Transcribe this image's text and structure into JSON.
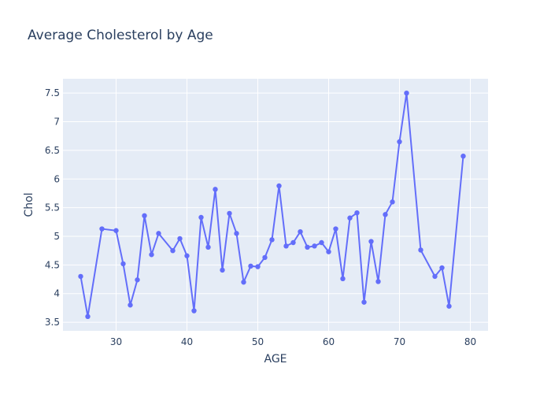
{
  "chart_data": {
    "type": "line",
    "title": "Average Cholesterol by Age",
    "xlabel": "AGE",
    "ylabel": "Chol",
    "xlim": [
      22.5,
      82.5
    ],
    "ylim": [
      3.35,
      7.75
    ],
    "xticks": [
      30,
      40,
      50,
      60,
      70,
      80
    ],
    "yticks": [
      3.5,
      4,
      4.5,
      5,
      5.5,
      6,
      6.5,
      7,
      7.5
    ],
    "ytick_labels": [
      "3.5",
      "4",
      "4.5",
      "5",
      "5.5",
      "6",
      "6.5",
      "7",
      "7.5"
    ],
    "colors": {
      "series": "#636efa",
      "plot_bg": "#e5ecf6",
      "grid": "#ffffff",
      "text": "#2a3f5f"
    },
    "series": [
      {
        "x": [
          25,
          26,
          28,
          30,
          31,
          32,
          33,
          34,
          35,
          36,
          38,
          39,
          40,
          41,
          42,
          43,
          44,
          45,
          46,
          47,
          48,
          49,
          50,
          51,
          52,
          53,
          54,
          55,
          56,
          57,
          58,
          59,
          60,
          61,
          62,
          63,
          64,
          65,
          66,
          67,
          68,
          69,
          70,
          71,
          73,
          75,
          76,
          77,
          79
        ],
        "y": [
          4.3,
          3.6,
          5.13,
          5.1,
          4.52,
          3.8,
          4.24,
          5.36,
          4.68,
          5.05,
          4.75,
          4.96,
          4.66,
          3.7,
          5.33,
          4.81,
          5.82,
          4.41,
          5.4,
          5.05,
          4.2,
          4.48,
          4.47,
          4.63,
          4.94,
          5.88,
          4.83,
          4.89,
          5.08,
          4.81,
          4.83,
          4.89,
          4.73,
          5.13,
          4.26,
          5.32,
          5.41,
          3.85,
          4.91,
          4.21,
          5.38,
          5.6,
          6.65,
          7.5,
          4.76,
          4.3,
          4.45,
          3.78,
          6.4
        ]
      }
    ]
  }
}
